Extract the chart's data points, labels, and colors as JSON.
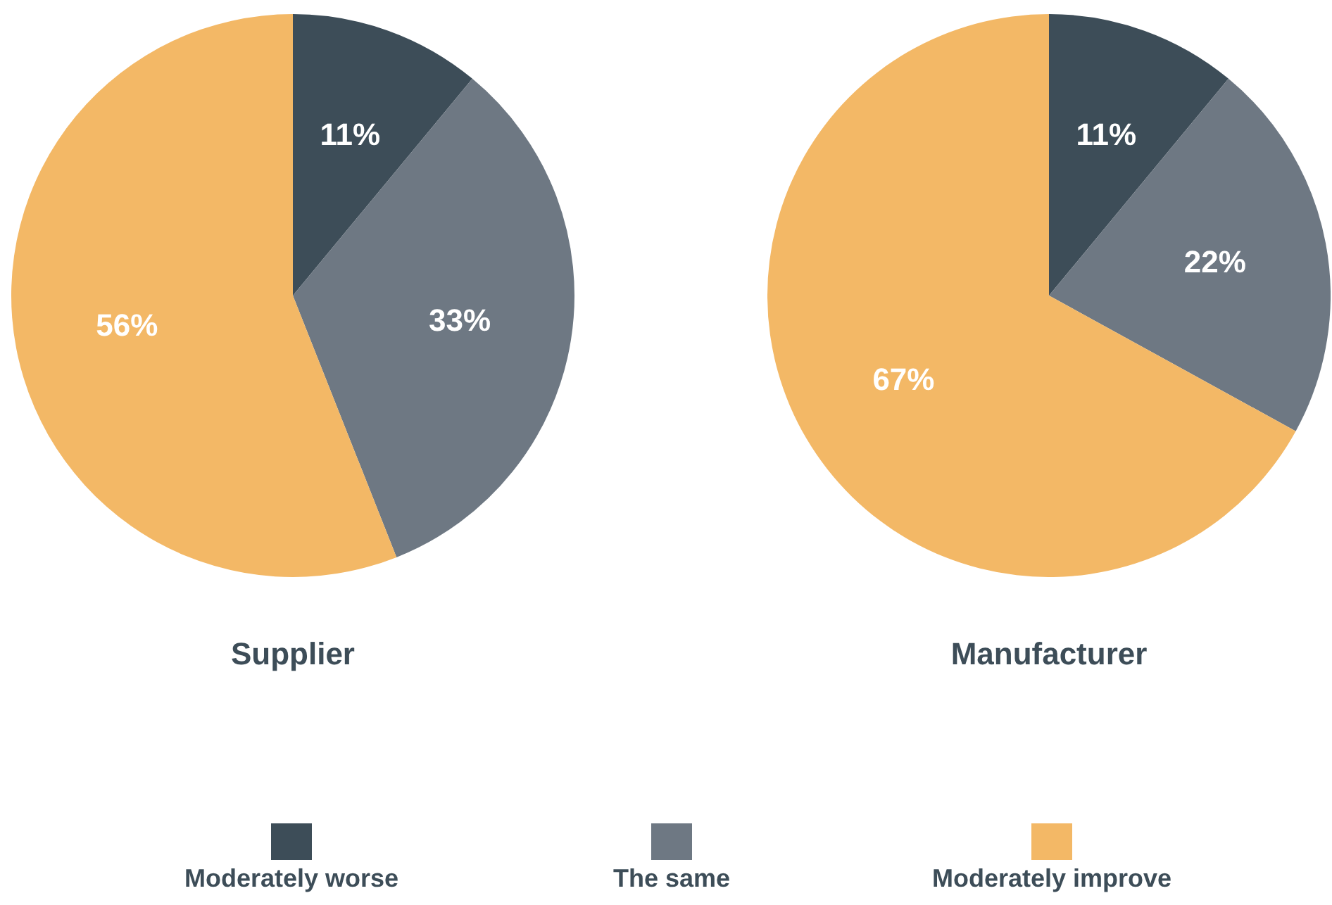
{
  "chart_data": [
    {
      "type": "pie",
      "title": "Supplier",
      "categories": [
        "Moderately worse",
        "The same",
        "Moderately improve"
      ],
      "values": [
        11,
        33,
        56
      ],
      "value_labels": [
        "11%",
        "33%",
        "56%"
      ],
      "colors": [
        "#3d4d58",
        "#6e7883",
        "#f3b866"
      ],
      "legend": "bottom"
    },
    {
      "type": "pie",
      "title": "Manufacturer",
      "categories": [
        null,
        null,
        null
      ],
      "values": [
        11,
        22,
        67
      ],
      "value_labels": [
        "11%",
        "22%",
        "67%"
      ],
      "colors": [
        "#3d4d58",
        "#6e7883",
        "#f3b866"
      ]
    }
  ]
}
